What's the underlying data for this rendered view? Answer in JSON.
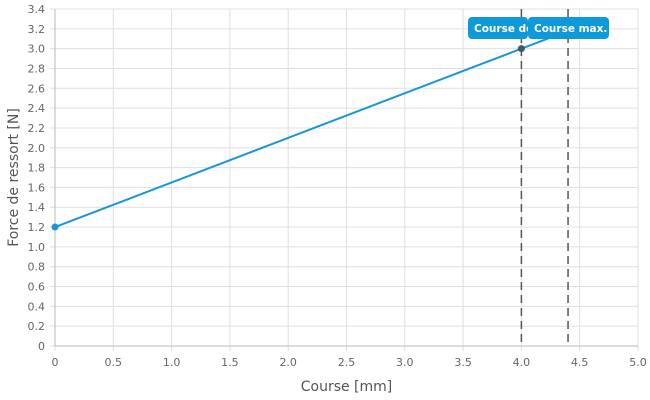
{
  "chart_data": {
    "type": "line",
    "xlabel": "Course [mm]",
    "ylabel": "Force de ressort [N]",
    "xlim": [
      0,
      5
    ],
    "ylim": [
      0,
      3.4
    ],
    "xticks": [
      "0",
      "0.5",
      "1.0",
      "1.5",
      "2.0",
      "2.5",
      "3.0",
      "3.5",
      "4.0",
      "4.5",
      "5.0"
    ],
    "yticks": [
      "0",
      "0.2",
      "0.4",
      "0.6",
      "0.8",
      "1.0",
      "1.2",
      "1.4",
      "1.6",
      "1.8",
      "2.0",
      "2.2",
      "2.4",
      "2.6",
      "2.8",
      "3.0",
      "3.2",
      "3.4"
    ],
    "grid": true,
    "series": [
      {
        "x": [
          0,
          4.4
        ],
        "y": [
          1.2,
          3.18
        ],
        "points": [
          [
            0,
            1.2
          ],
          [
            4,
            3.0
          ]
        ],
        "color": "#1996d8"
      }
    ],
    "annotations": [
      {
        "x": 4.0,
        "label": "Course de",
        "style": "dashed"
      },
      {
        "x": 4.4,
        "label": "Course max.",
        "style": "dashed"
      }
    ],
    "label_color": "#0e9ad8"
  }
}
